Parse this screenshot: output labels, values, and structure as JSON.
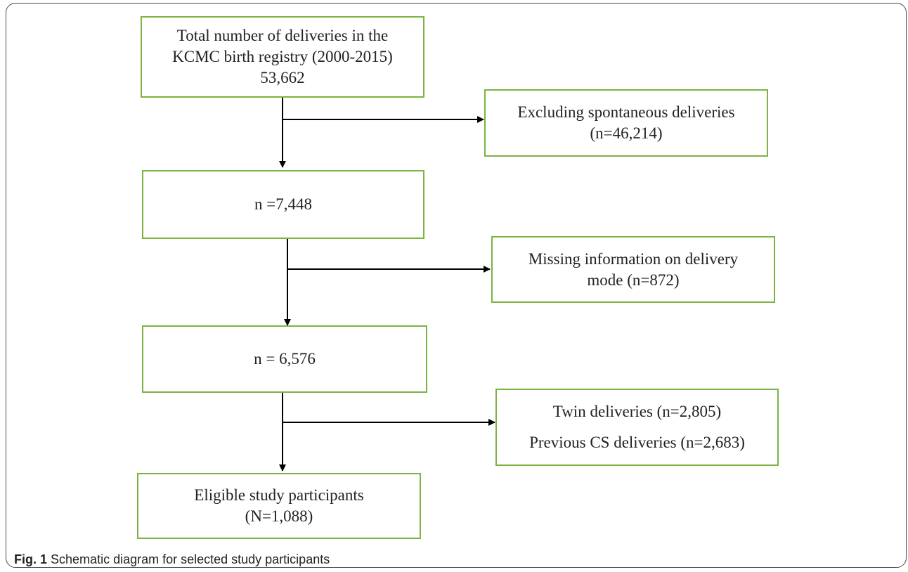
{
  "boxes": {
    "total": {
      "line1": "Total number of deliveries in the",
      "line2": "KCMC birth registry (2000-2015)",
      "line3": "53,662"
    },
    "excl_spontaneous": {
      "line1": "Excluding spontaneous deliveries",
      "line2": "(n=46,214)"
    },
    "after_spontaneous": {
      "line1": "n =7,448"
    },
    "missing_mode": {
      "line1": "Missing information on delivery",
      "line2": "mode (n=872)"
    },
    "after_missing": {
      "line1": "n = 6,576"
    },
    "excl_twin_cs": {
      "line1": "Twin deliveries (n=2,805)",
      "line2": "Previous CS deliveries (n=2,683)"
    },
    "eligible": {
      "line1": "Eligible study participants",
      "line2": "(N=1,088)"
    }
  },
  "caption": {
    "label": "Fig. 1",
    "text": "Schematic diagram for selected study participants"
  },
  "colors": {
    "box_border": "#7cb342",
    "arrow": "#000000",
    "text": "#222222"
  }
}
